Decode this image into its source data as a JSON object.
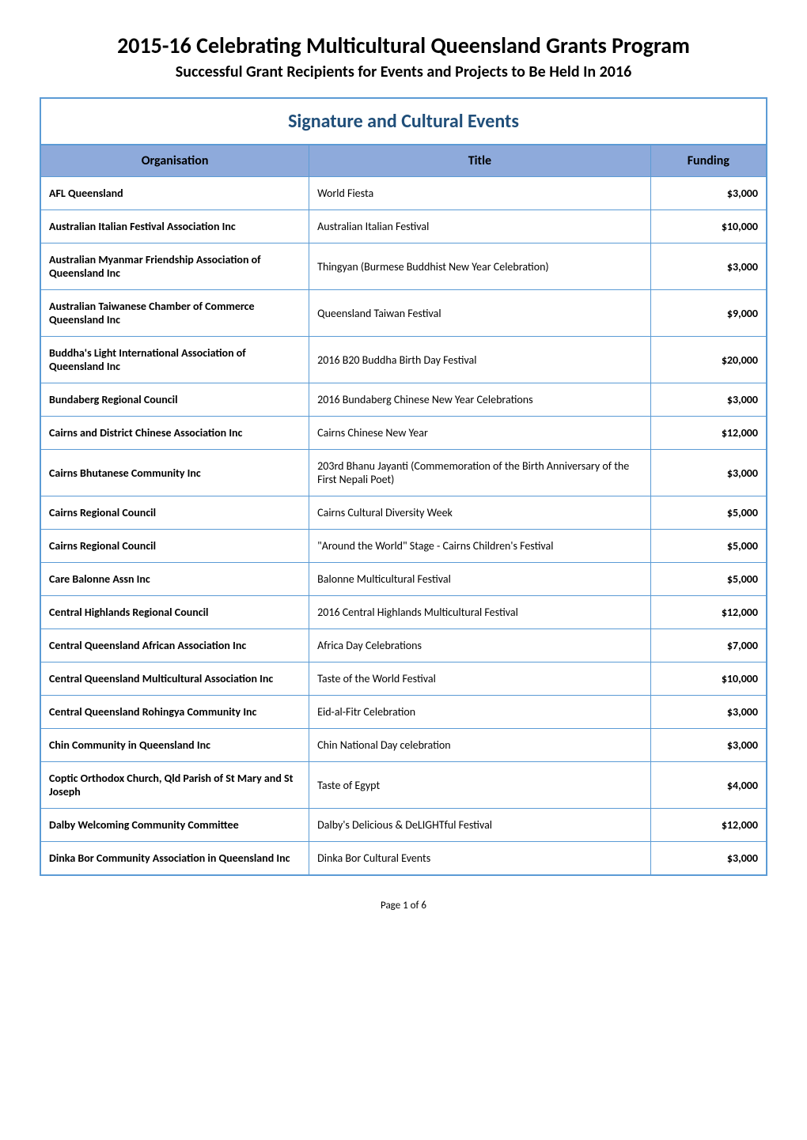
{
  "document": {
    "main_title": "2015-16 Celebrating Multicultural Queensland Grants Program",
    "subtitle": "Successful Grant Recipients for Events and Projects to Be Held In 2016"
  },
  "section": {
    "title": "Signature and Cultural Events"
  },
  "columns": {
    "org": "Organisation",
    "title": "Title",
    "funding": "Funding"
  },
  "styling": {
    "border_color": "#5b9bd5",
    "header_bg": "#8eaadb",
    "section_header_color": "#1f4e79",
    "text_color": "#000000",
    "background_color": "#ffffff",
    "main_title_fontsize": 28,
    "subtitle_fontsize": 20,
    "section_header_fontsize": 24,
    "col_header_fontsize": 16,
    "cell_fontsize": 14,
    "col_widths": [
      "37%",
      "47%",
      "16%"
    ]
  },
  "rows": [
    {
      "org": "AFL Queensland",
      "title": "World Fiesta",
      "funding": "$3,000"
    },
    {
      "org": "Australian Italian Festival Association Inc",
      "title": "Australian Italian Festival",
      "funding": "$10,000"
    },
    {
      "org": "Australian Myanmar Friendship Association of Queensland Inc",
      "title": "Thingyan (Burmese Buddhist New Year Celebration)",
      "funding": "$3,000"
    },
    {
      "org": "Australian Taiwanese Chamber of Commerce Queensland Inc",
      "title": "Queensland Taiwan Festival",
      "funding": "$9,000"
    },
    {
      "org": "Buddha's Light International Association of Queensland Inc",
      "title": "2016 B20 Buddha Birth Day Festival",
      "funding": "$20,000"
    },
    {
      "org": "Bundaberg Regional Council",
      "title": "2016 Bundaberg Chinese New Year Celebrations",
      "funding": "$3,000"
    },
    {
      "org": "Cairns and District Chinese Association Inc",
      "title": "Cairns Chinese New Year",
      "funding": "$12,000"
    },
    {
      "org": "Cairns Bhutanese Community Inc",
      "title": "203rd Bhanu Jayanti (Commemoration of the Birth Anniversary of the First Nepali Poet)",
      "funding": "$3,000"
    },
    {
      "org": "Cairns Regional Council",
      "title": "Cairns Cultural Diversity Week",
      "funding": "$5,000"
    },
    {
      "org": "Cairns Regional Council",
      "title": "\"Around the World\" Stage - Cairns Children's Festival",
      "funding": "$5,000"
    },
    {
      "org": "Care Balonne Assn Inc",
      "title": "Balonne Multicultural Festival",
      "funding": "$5,000"
    },
    {
      "org": "Central Highlands Regional Council",
      "title": "2016 Central Highlands Multicultural Festival",
      "funding": "$12,000"
    },
    {
      "org": "Central Queensland African Association Inc",
      "title": "Africa Day Celebrations",
      "funding": "$7,000"
    },
    {
      "org": "Central Queensland Multicultural Association Inc",
      "title": "Taste of the World Festival",
      "funding": "$10,000"
    },
    {
      "org": "Central Queensland Rohingya Community Inc",
      "title": "Eid-al-Fitr Celebration",
      "funding": "$3,000"
    },
    {
      "org": "Chin Community in Queensland Inc",
      "title": "Chin National Day celebration",
      "funding": "$3,000"
    },
    {
      "org": "Coptic Orthodox Church, Qld Parish of St Mary and St Joseph",
      "title": "Taste of Egypt",
      "funding": "$4,000"
    },
    {
      "org": "Dalby Welcoming Community Committee",
      "title": "Dalby's Delicious & DeLIGHTful Festival",
      "funding": "$12,000"
    },
    {
      "org": "Dinka Bor Community Association in Queensland Inc",
      "title": "Dinka Bor Cultural Events",
      "funding": "$3,000"
    }
  ],
  "footer": {
    "page_label": "Page 1 of 6"
  }
}
